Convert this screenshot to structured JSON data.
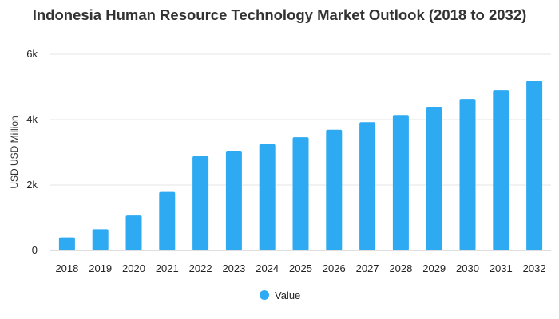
{
  "chart_data": {
    "type": "bar",
    "title": "Indonesia Human Resource Technology Market Outlook (2018 to 2032)",
    "xlabel": "",
    "ylabel": "USD USD Million",
    "categories": [
      "2018",
      "2019",
      "2020",
      "2021",
      "2022",
      "2023",
      "2024",
      "2025",
      "2026",
      "2027",
      "2028",
      "2029",
      "2030",
      "2031",
      "2032"
    ],
    "series": [
      {
        "name": "Value",
        "color": "#2eaaf2",
        "values": [
          400,
          650,
          1070,
          1790,
          2880,
          3050,
          3250,
          3460,
          3690,
          3920,
          4140,
          4390,
          4630,
          4900,
          5190
        ]
      }
    ],
    "ylim": [
      0,
      6000
    ],
    "yticks": [
      0,
      2000,
      4000,
      6000
    ],
    "ytick_labels": [
      "0",
      "2k",
      "4k",
      "6k"
    ],
    "grid": true,
    "legend_position": "bottom-center"
  }
}
